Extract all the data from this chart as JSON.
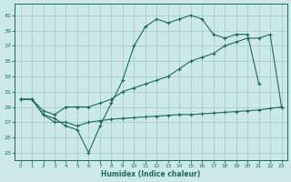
{
  "xlabel": "Humidex (Indice chaleur)",
  "xlim": [
    -0.5,
    23.5
  ],
  "ylim": [
    22,
    42.5
  ],
  "xticks": [
    0,
    1,
    2,
    3,
    4,
    5,
    6,
    7,
    8,
    9,
    10,
    11,
    12,
    13,
    14,
    15,
    16,
    17,
    18,
    19,
    20,
    21,
    22,
    23
  ],
  "yticks": [
    23,
    25,
    27,
    29,
    31,
    33,
    35,
    37,
    39,
    41
  ],
  "bg_color": "#cce9e7",
  "grid_color": "#a8cecc",
  "line_color": "#1a6b5e",
  "curve1_x": [
    0,
    1,
    2,
    3,
    4,
    5,
    6,
    7,
    8,
    9,
    10,
    11,
    12,
    13,
    14,
    15,
    16,
    17,
    18,
    19,
    20,
    21
  ],
  "curve1_y": [
    30,
    30,
    28,
    27.5,
    26.5,
    26,
    23,
    26.5,
    29.5,
    32.5,
    37,
    39.5,
    40.5,
    40,
    40.5,
    41,
    40.5,
    38.5,
    38,
    38.5,
    38.5,
    32
  ],
  "curve2_x": [
    0,
    1,
    2,
    3,
    4,
    5,
    6,
    7,
    8,
    9,
    10,
    11,
    12,
    13,
    14,
    15,
    16,
    17,
    18,
    19,
    20,
    21,
    22,
    23
  ],
  "curve2_y": [
    30,
    30,
    28.5,
    28,
    29,
    29,
    29,
    29.5,
    30,
    31,
    31.5,
    32,
    32.5,
    33,
    34,
    35,
    35.5,
    36,
    37,
    37.5,
    38,
    38,
    38.5,
    29
  ],
  "curve3_x": [
    0,
    1,
    2,
    3,
    4,
    5,
    6,
    7,
    8,
    9,
    10,
    11,
    12,
    13,
    14,
    15,
    16,
    17,
    18,
    19,
    20,
    21,
    22,
    23
  ],
  "curve3_y": [
    30,
    30,
    28,
    27,
    27,
    26.5,
    27,
    27.2,
    27.4,
    27.5,
    27.6,
    27.7,
    27.8,
    27.9,
    28,
    28,
    28.1,
    28.2,
    28.3,
    28.4,
    28.5,
    28.6,
    28.8,
    29
  ]
}
